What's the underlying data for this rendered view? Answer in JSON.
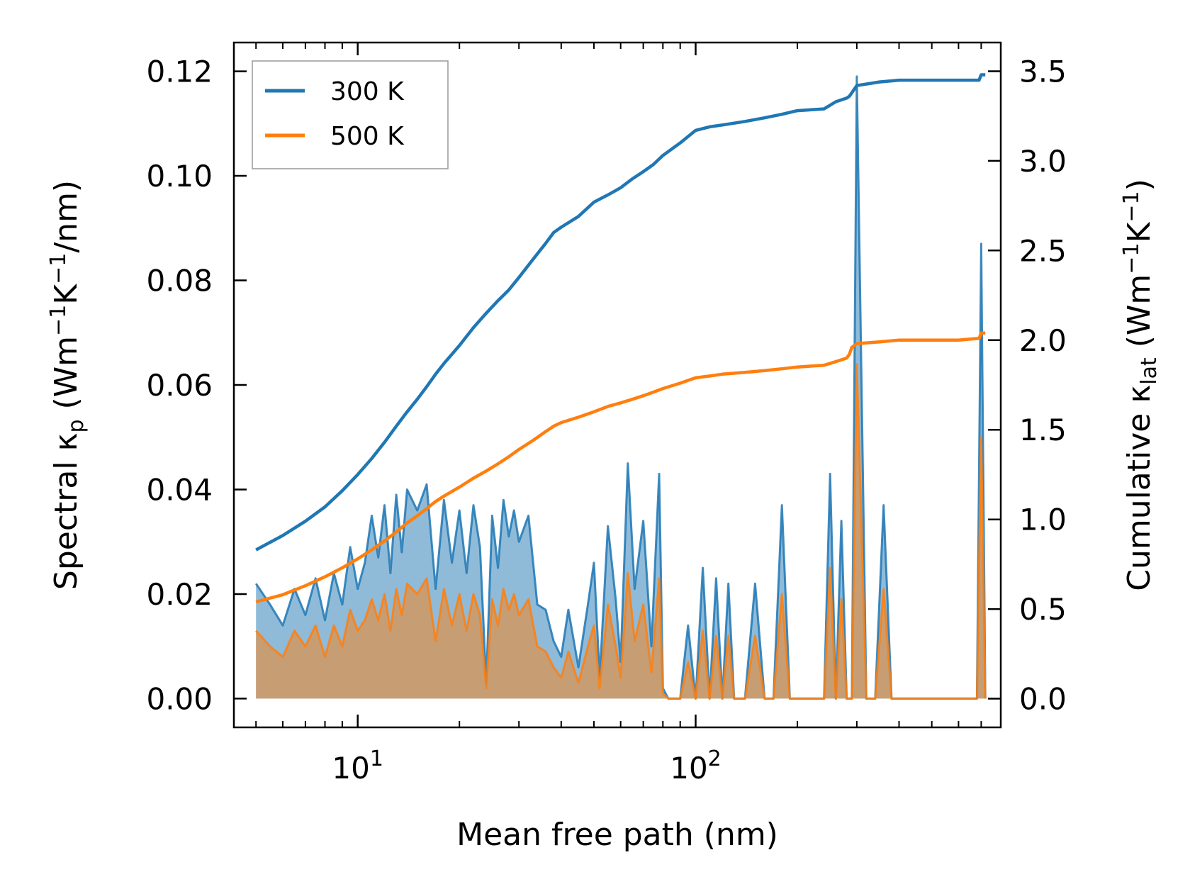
{
  "chart_data": {
    "type": "line",
    "xscale": "log",
    "xlim": [
      4.3,
      800
    ],
    "ylim_left": [
      -0.0055,
      0.1255
    ],
    "ylim_right": [
      -0.16,
      3.66
    ],
    "xlabel": "Mean free path (nm)",
    "ylabel_left": {
      "prefix": "Spectral κ",
      "sub": "p",
      "unit_open": " (Wm",
      "sup1": "−1",
      "mid": "K",
      "sup2": "−1",
      "unit_close": "/nm)"
    },
    "ylabel_right": {
      "prefix": "Cumulative κ",
      "sub": "lat",
      "unit_open": " (Wm",
      "sup1": "−1",
      "mid": "K",
      "sup2": "−1",
      "unit_close": ")"
    },
    "x_ticks": [
      {
        "value": 10,
        "base": "10",
        "exp": "1"
      },
      {
        "value": 100,
        "base": "10",
        "exp": "2"
      }
    ],
    "y_left_ticks": [
      {
        "value": 0,
        "label": "0.00"
      },
      {
        "value": 0.02,
        "label": "0.02"
      },
      {
        "value": 0.04,
        "label": "0.04"
      },
      {
        "value": 0.06,
        "label": "0.06"
      },
      {
        "value": 0.08,
        "label": "0.08"
      },
      {
        "value": 0.1,
        "label": "0.10"
      },
      {
        "value": 0.12,
        "label": "0.12"
      }
    ],
    "y_right_ticks": [
      {
        "value": 0,
        "label": "0.0"
      },
      {
        "value": 0.5,
        "label": "0.5"
      },
      {
        "value": 1.0,
        "label": "1.0"
      },
      {
        "value": 1.5,
        "label": "1.5"
      },
      {
        "value": 2.0,
        "label": "2.0"
      },
      {
        "value": 2.5,
        "label": "2.5"
      },
      {
        "value": 3.0,
        "label": "3.0"
      },
      {
        "value": 3.5,
        "label": "3.5"
      }
    ],
    "legend": {
      "position": "upper-left",
      "entries": [
        {
          "label": "300 K",
          "color": "#1f77b4"
        },
        {
          "label": "500 K",
          "color": "#ff7f0e"
        }
      ]
    },
    "spectral_series": [
      {
        "name": "300 K",
        "color": "#1f77b4",
        "x": [
          5.0,
          5.5,
          6.0,
          6.5,
          7.0,
          7.5,
          8.0,
          8.5,
          9.0,
          9.5,
          10.0,
          10.5,
          11.0,
          11.5,
          12.0,
          12.5,
          13.0,
          13.5,
          14.0,
          15.0,
          16.0,
          17.0,
          18.0,
          19.0,
          20.0,
          21.0,
          22.0,
          23.0,
          24.0,
          25.0,
          26.0,
          27.0,
          28.0,
          29.0,
          30.0,
          32.0,
          34.0,
          36.0,
          38.0,
          40.0,
          42.0,
          45.0,
          48.0,
          50.0,
          52.0,
          55.0,
          58.0,
          60.0,
          63.0,
          66.0,
          70.0,
          74.0,
          78.0,
          80.0,
          83.0,
          86.0,
          90.0,
          95.0,
          100.0,
          105.0,
          110.0,
          115.0,
          120.0,
          125.0,
          130.0,
          140.0,
          150.0,
          160.0,
          170.0,
          180.0,
          190.0,
          200.0,
          220.0,
          240.0,
          250.0,
          260.0,
          270.0,
          280.0,
          290.0,
          300.0,
          320.0,
          340.0,
          360.0,
          380.0,
          400.0,
          450.0,
          500.0,
          550.0,
          600.0,
          650.0,
          680.0,
          700.0,
          720.0
        ],
        "y": [
          0.022,
          0.018,
          0.014,
          0.021,
          0.016,
          0.023,
          0.015,
          0.024,
          0.018,
          0.029,
          0.021,
          0.026,
          0.035,
          0.027,
          0.037,
          0.024,
          0.039,
          0.028,
          0.04,
          0.036,
          0.041,
          0.021,
          0.038,
          0.026,
          0.036,
          0.024,
          0.037,
          0.029,
          0.003,
          0.035,
          0.025,
          0.038,
          0.031,
          0.036,
          0.03,
          0.035,
          0.018,
          0.017,
          0.011,
          0.008,
          0.017,
          0.006,
          0.018,
          0.026,
          0.004,
          0.033,
          0.019,
          0.007,
          0.045,
          0.021,
          0.034,
          0.01,
          0.043,
          0.002,
          0.0,
          0.0,
          0.0,
          0.014,
          0.0,
          0.025,
          0.0,
          0.023,
          0.0,
          0.022,
          0.0,
          0.0,
          0.022,
          0.0,
          0.0,
          0.037,
          0.0,
          0.0,
          0.0,
          0.0,
          0.043,
          0.0,
          0.034,
          0.0,
          0.0,
          0.119,
          0.0,
          0.0,
          0.037,
          0.0,
          0.0,
          0.0,
          0.0,
          0.0,
          0.0,
          0.0,
          0.0,
          0.087,
          0.0
        ]
      },
      {
        "name": "500 K",
        "color": "#ff7f0e",
        "x": [
          5.0,
          5.5,
          6.0,
          6.5,
          7.0,
          7.5,
          8.0,
          8.5,
          9.0,
          9.5,
          10.0,
          10.5,
          11.0,
          11.5,
          12.0,
          12.5,
          13.0,
          13.5,
          14.0,
          15.0,
          16.0,
          17.0,
          18.0,
          19.0,
          20.0,
          21.0,
          22.0,
          23.0,
          24.0,
          25.0,
          26.0,
          27.0,
          28.0,
          29.0,
          30.0,
          32.0,
          34.0,
          36.0,
          38.0,
          40.0,
          42.0,
          45.0,
          48.0,
          50.0,
          52.0,
          55.0,
          58.0,
          60.0,
          63.0,
          66.0,
          70.0,
          74.0,
          78.0,
          80.0,
          83.0,
          86.0,
          90.0,
          95.0,
          100.0,
          105.0,
          110.0,
          115.0,
          120.0,
          125.0,
          130.0,
          140.0,
          150.0,
          160.0,
          170.0,
          180.0,
          190.0,
          200.0,
          220.0,
          240.0,
          250.0,
          260.0,
          270.0,
          280.0,
          290.0,
          300.0,
          320.0,
          340.0,
          360.0,
          380.0,
          400.0,
          450.0,
          500.0,
          550.0,
          600.0,
          650.0,
          680.0,
          700.0,
          720.0
        ],
        "y": [
          0.013,
          0.01,
          0.008,
          0.013,
          0.01,
          0.014,
          0.008,
          0.014,
          0.01,
          0.017,
          0.013,
          0.015,
          0.019,
          0.015,
          0.02,
          0.013,
          0.021,
          0.016,
          0.022,
          0.02,
          0.023,
          0.011,
          0.021,
          0.014,
          0.02,
          0.013,
          0.02,
          0.016,
          0.002,
          0.019,
          0.014,
          0.021,
          0.017,
          0.02,
          0.016,
          0.019,
          0.01,
          0.009,
          0.006,
          0.004,
          0.009,
          0.003,
          0.01,
          0.014,
          0.002,
          0.018,
          0.01,
          0.004,
          0.024,
          0.011,
          0.018,
          0.005,
          0.023,
          0.001,
          0.0,
          0.0,
          0.0,
          0.007,
          0.0,
          0.013,
          0.0,
          0.012,
          0.0,
          0.012,
          0.0,
          0.0,
          0.012,
          0.0,
          0.0,
          0.02,
          0.0,
          0.0,
          0.0,
          0.0,
          0.025,
          0.0,
          0.019,
          0.0,
          0.0,
          0.064,
          0.0,
          0.0,
          0.021,
          0.0,
          0.0,
          0.0,
          0.0,
          0.0,
          0.0,
          0.0,
          0.0,
          0.05,
          0.0
        ]
      }
    ],
    "cumulative_series": [
      {
        "name": "300 K",
        "color": "#1f77b4",
        "x": [
          5,
          6,
          7,
          8,
          9,
          10,
          11,
          12,
          13,
          14,
          15,
          16,
          17,
          18,
          20,
          22,
          24,
          26,
          28,
          30,
          33,
          36,
          38,
          40,
          45,
          50,
          55,
          60,
          65,
          70,
          75,
          80,
          90,
          100,
          110,
          120,
          140,
          160,
          180,
          200,
          240,
          260,
          280,
          285,
          290,
          300,
          350,
          400,
          500,
          600,
          690,
          700,
          720
        ],
        "y": [
          0.83,
          0.91,
          0.99,
          1.07,
          1.16,
          1.25,
          1.34,
          1.43,
          1.52,
          1.6,
          1.67,
          1.74,
          1.81,
          1.87,
          1.97,
          2.07,
          2.15,
          2.22,
          2.28,
          2.35,
          2.45,
          2.54,
          2.6,
          2.63,
          2.69,
          2.77,
          2.81,
          2.85,
          2.9,
          2.94,
          2.98,
          3.03,
          3.1,
          3.17,
          3.19,
          3.2,
          3.22,
          3.24,
          3.26,
          3.28,
          3.29,
          3.33,
          3.35,
          3.36,
          3.38,
          3.42,
          3.44,
          3.45,
          3.45,
          3.45,
          3.45,
          3.48,
          3.48
        ]
      },
      {
        "name": "500 K",
        "color": "#ff7f0e",
        "x": [
          5,
          6,
          7,
          8,
          9,
          10,
          11,
          12,
          13,
          14,
          15,
          16,
          17,
          18,
          20,
          22,
          24,
          26,
          28,
          30,
          33,
          36,
          38,
          40,
          45,
          50,
          55,
          60,
          65,
          70,
          75,
          80,
          90,
          100,
          110,
          120,
          140,
          160,
          180,
          200,
          240,
          260,
          280,
          285,
          290,
          300,
          350,
          400,
          500,
          600,
          690,
          700,
          720
        ],
        "y": [
          0.54,
          0.58,
          0.63,
          0.68,
          0.73,
          0.78,
          0.83,
          0.88,
          0.93,
          0.98,
          1.02,
          1.06,
          1.1,
          1.13,
          1.18,
          1.23,
          1.27,
          1.31,
          1.35,
          1.39,
          1.44,
          1.49,
          1.52,
          1.54,
          1.57,
          1.6,
          1.63,
          1.65,
          1.67,
          1.69,
          1.71,
          1.73,
          1.76,
          1.79,
          1.8,
          1.81,
          1.82,
          1.83,
          1.84,
          1.85,
          1.86,
          1.88,
          1.9,
          1.92,
          1.96,
          1.98,
          1.99,
          2.0,
          2.0,
          2.0,
          2.01,
          2.04,
          2.04
        ]
      }
    ]
  }
}
